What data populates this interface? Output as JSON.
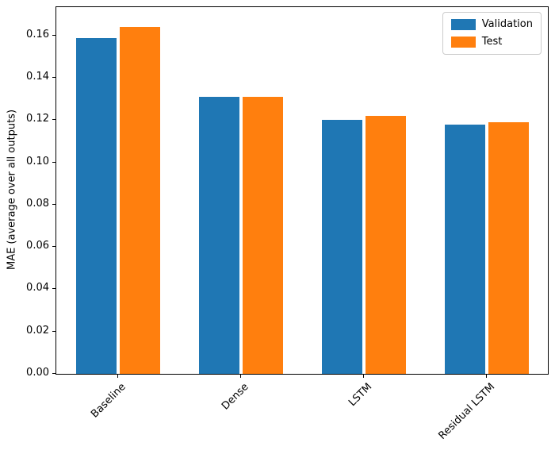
{
  "chart_data": {
    "type": "bar",
    "categories": [
      "Baseline",
      "Dense",
      "LSTM",
      "Residual LSTM"
    ],
    "series": [
      {
        "name": "Validation",
        "color": "#1f77b4",
        "values": [
          0.159,
          0.131,
          0.12,
          0.118
        ]
      },
      {
        "name": "Test",
        "color": "#ff7f0e",
        "values": [
          0.164,
          0.131,
          0.122,
          0.119
        ]
      }
    ],
    "title": "",
    "xlabel": "",
    "ylabel": "MAE (average over all outputs)",
    "ylim": [
      0,
      0.1735
    ],
    "yticks": [
      0.0,
      0.02,
      0.04,
      0.06,
      0.08,
      0.1,
      0.12,
      0.14,
      0.16
    ],
    "xtick_rotation": 45,
    "grid": false,
    "legend": {
      "position": "upper right"
    }
  }
}
